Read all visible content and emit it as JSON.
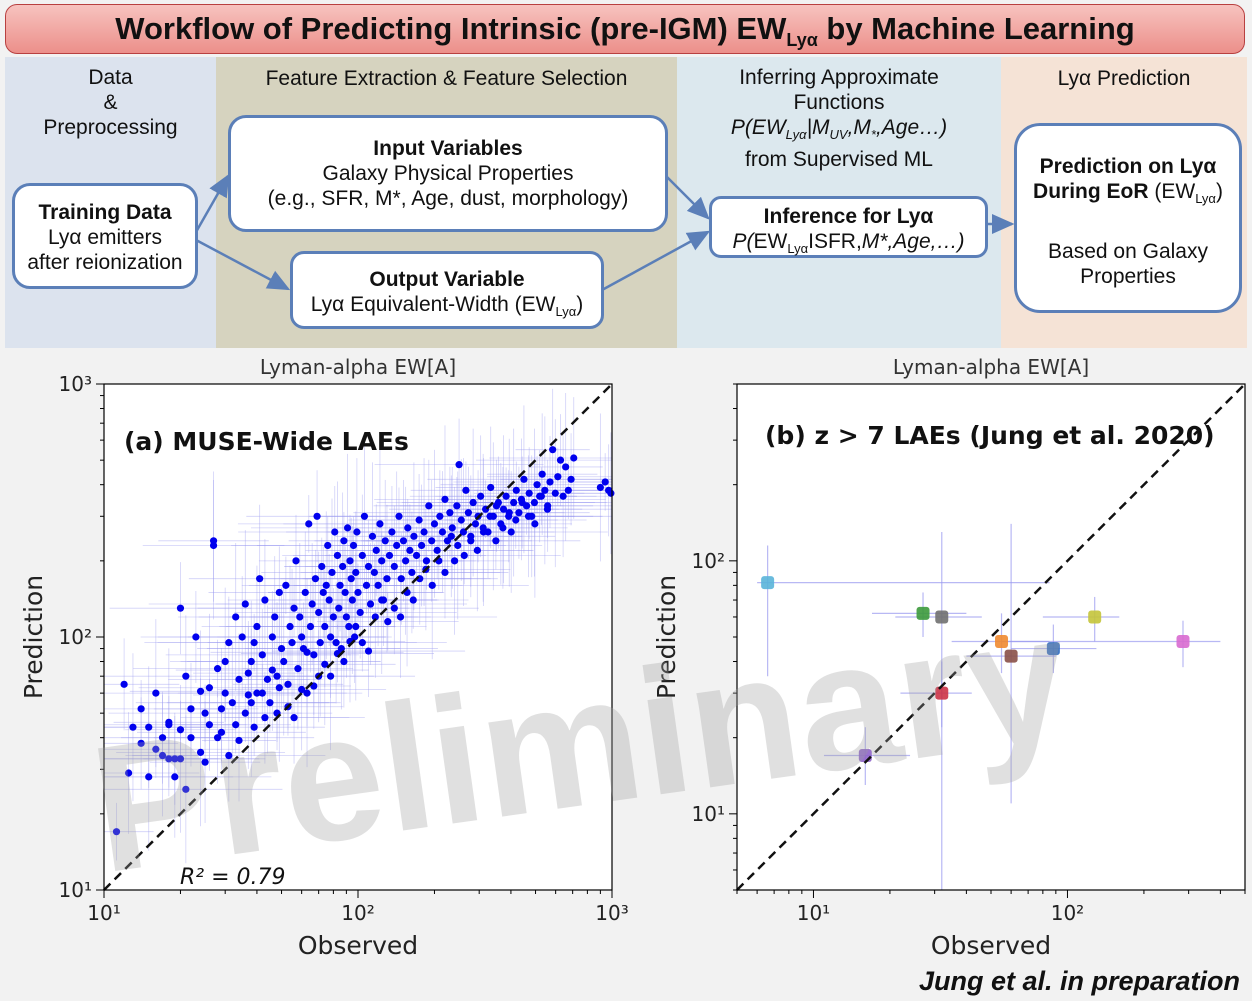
{
  "title": {
    "main": "Workflow of Predicting Intrinsic (pre-IGM) EW",
    "sub": "Lyα",
    "tail": " by Machine Learning"
  },
  "columns": [
    {
      "l1": "Data",
      "l2": "&",
      "l3": "Preprocessing"
    },
    {
      "l1": "Feature Extraction & Feature Selection"
    },
    {
      "l1": "Inferring Approximate",
      "l2": "Functions",
      "l3a": "P(EW",
      "l3s": "Lyα",
      "l3b": "|M",
      "l3s2": "UV",
      "l3c": ",M",
      "l3d": "*",
      "l3e": ",Age…)",
      "l4": "from Supervised ML"
    },
    {
      "l1": "Lyα Prediction"
    }
  ],
  "boxes": {
    "training": {
      "title": "Training Data",
      "l2": "Lyα emitters",
      "l3": "after reionization"
    },
    "input": {
      "title": "Input Variables",
      "l2": "Galaxy Physical Properties",
      "l3": "(e.g., SFR, M*, Age, dust, morphology)"
    },
    "output": {
      "title": "Output Variable",
      "l2a": "Lyα Equivalent-Width (EW",
      "l2s": "Lyα",
      "l2b": ")"
    },
    "inference": {
      "title": "Inference for Lyα",
      "l2a": "P(",
      "l2b": "EW",
      "l2s": "Lyα",
      "l2c": "ISFR,",
      "l2d": "M*,Age,…)"
    },
    "prediction": {
      "title1": "Prediction on Lyα",
      "title2a": "During EoR ",
      "title2b": "(EW",
      "title2s": "Lyα",
      "title2c": ")",
      "l3": "Based on Galaxy",
      "l4": "Properties"
    }
  },
  "watermark": "Preliminary",
  "credit": "Jung et al. in preparation",
  "chart_data": [
    {
      "type": "scatter",
      "title": "Lyman-alpha EW[A]",
      "annotation": "(a) MUSE-Wide LAEs",
      "r2_label": "R² = 0.79",
      "xlabel": "Observed",
      "ylabel": "Prediction",
      "xscale": "log",
      "yscale": "log",
      "xlim": [
        10,
        1000
      ],
      "ylim": [
        10,
        1000
      ],
      "xticks": [
        "10¹",
        "10²",
        "10³"
      ],
      "yticks": [
        "10¹",
        "10²",
        "10³"
      ],
      "color": "#0000ee",
      "errorbar_color": "#9a9af0",
      "points": [
        [
          11.2,
          17
        ],
        [
          12,
          65
        ],
        [
          12.5,
          29
        ],
        [
          13,
          44
        ],
        [
          14,
          52
        ],
        [
          14,
          38
        ],
        [
          15,
          44
        ],
        [
          16,
          60
        ],
        [
          16,
          36
        ],
        [
          17,
          40
        ],
        [
          17,
          34
        ],
        [
          18,
          46
        ],
        [
          18,
          45
        ],
        [
          19,
          33
        ],
        [
          19,
          28
        ],
        [
          20,
          33
        ],
        [
          20,
          43
        ],
        [
          20,
          130
        ],
        [
          21,
          70
        ],
        [
          21,
          25
        ],
        [
          22,
          40
        ],
        [
          23,
          100
        ],
        [
          24,
          61
        ],
        [
          24,
          35
        ],
        [
          25,
          50
        ],
        [
          26,
          45
        ],
        [
          27,
          240
        ],
        [
          27,
          230
        ],
        [
          28,
          75
        ],
        [
          28,
          40
        ],
        [
          29,
          52
        ],
        [
          30,
          80
        ],
        [
          30,
          60
        ],
        [
          31,
          95
        ],
        [
          32,
          55
        ],
        [
          33,
          120
        ],
        [
          33,
          45
        ],
        [
          34,
          68
        ],
        [
          35,
          100
        ],
        [
          36,
          135
        ],
        [
          36,
          50
        ],
        [
          37,
          72
        ],
        [
          38,
          80
        ],
        [
          38,
          55
        ],
        [
          39,
          95
        ],
        [
          40,
          60
        ],
        [
          40,
          110
        ],
        [
          41,
          170
        ],
        [
          42,
          60
        ],
        [
          42,
          85
        ],
        [
          43,
          140
        ],
        [
          44,
          68
        ],
        [
          45,
          55
        ],
        [
          46,
          100
        ],
        [
          47,
          120
        ],
        [
          48,
          70
        ],
        [
          48,
          50
        ],
        [
          49,
          150
        ],
        [
          50,
          90
        ],
        [
          51,
          80
        ],
        [
          52,
          160
        ],
        [
          53,
          65
        ],
        [
          54,
          110
        ],
        [
          55,
          95
        ],
        [
          56,
          130
        ],
        [
          57,
          200
        ],
        [
          58,
          75
        ],
        [
          59,
          120
        ],
        [
          60,
          100
        ],
        [
          61,
          90
        ],
        [
          62,
          150
        ],
        [
          63,
          60
        ],
        [
          64,
          280
        ],
        [
          65,
          110
        ],
        [
          66,
          135
        ],
        [
          67,
          85
        ],
        [
          68,
          170
        ],
        [
          69,
          300
        ],
        [
          70,
          125
        ],
        [
          71,
          95
        ],
        [
          72,
          190
        ],
        [
          73,
          150
        ],
        [
          74,
          110
        ],
        [
          75,
          160
        ],
        [
          76,
          230
        ],
        [
          77,
          140
        ],
        [
          78,
          100
        ],
        [
          79,
          180
        ],
        [
          80,
          120
        ],
        [
          81,
          260
        ],
        [
          82,
          95
        ],
        [
          83,
          210
        ],
        [
          84,
          130
        ],
        [
          85,
          160
        ],
        [
          86,
          90
        ],
        [
          87,
          190
        ],
        [
          88,
          240
        ],
        [
          89,
          150
        ],
        [
          90,
          120
        ],
        [
          91,
          270
        ],
        [
          92,
          110
        ],
        [
          93,
          200
        ],
        [
          94,
          170
        ],
        [
          95,
          140
        ],
        [
          96,
          230
        ],
        [
          97,
          100
        ],
        [
          98,
          180
        ],
        [
          99,
          260
        ],
        [
          100,
          150
        ],
        [
          102,
          125
        ],
        [
          104,
          210
        ],
        [
          106,
          300
        ],
        [
          108,
          160
        ],
        [
          110,
          190
        ],
        [
          112,
          135
        ],
        [
          114,
          250
        ],
        [
          116,
          180
        ],
        [
          118,
          220
        ],
        [
          120,
          160
        ],
        [
          122,
          280
        ],
        [
          124,
          200
        ],
        [
          126,
          140
        ],
        [
          128,
          240
        ],
        [
          130,
          170
        ],
        [
          133,
          210
        ],
        [
          136,
          260
        ],
        [
          139,
          190
        ],
        [
          142,
          230
        ],
        [
          145,
          300
        ],
        [
          148,
          170
        ],
        [
          151,
          240
        ],
        [
          154,
          200
        ],
        [
          157,
          270
        ],
        [
          160,
          220
        ],
        [
          163,
          180
        ],
        [
          166,
          250
        ],
        [
          170,
          210
        ],
        [
          174,
          290
        ],
        [
          178,
          230
        ],
        [
          182,
          260
        ],
        [
          186,
          200
        ],
        [
          190,
          330
        ],
        [
          195,
          240
        ],
        [
          200,
          280
        ],
        [
          205,
          220
        ],
        [
          210,
          300
        ],
        [
          215,
          260
        ],
        [
          220,
          350
        ],
        [
          225,
          240
        ],
        [
          230,
          310
        ],
        [
          235,
          270
        ],
        [
          240,
          200
        ],
        [
          245,
          330
        ],
        [
          250,
          480
        ],
        [
          255,
          290
        ],
        [
          260,
          260
        ],
        [
          266,
          380
        ],
        [
          272,
          310
        ],
        [
          278,
          250
        ],
        [
          284,
          340
        ],
        [
          290,
          280
        ],
        [
          297,
          300
        ],
        [
          304,
          360
        ],
        [
          311,
          270
        ],
        [
          318,
          320
        ],
        [
          325,
          260
        ],
        [
          333,
          390
        ],
        [
          341,
          300
        ],
        [
          349,
          240
        ],
        [
          357,
          340
        ],
        [
          365,
          280
        ],
        [
          374,
          320
        ],
        [
          383,
          360
        ],
        [
          392,
          300
        ],
        [
          401,
          260
        ],
        [
          410,
          340
        ],
        [
          420,
          380
        ],
        [
          430,
          310
        ],
        [
          440,
          350
        ],
        [
          450,
          420
        ],
        [
          461,
          330
        ],
        [
          472,
          370
        ],
        [
          483,
          300
        ],
        [
          495,
          340
        ],
        [
          507,
          400
        ],
        [
          519,
          360
        ],
        [
          531,
          440
        ],
        [
          544,
          380
        ],
        [
          557,
          320
        ],
        [
          570,
          410
        ],
        [
          584,
          550
        ],
        [
          598,
          370
        ],
        [
          612,
          430
        ],
        [
          627,
          500
        ],
        [
          642,
          360
        ],
        [
          657,
          470
        ],
        [
          673,
          380
        ],
        [
          690,
          420
        ],
        [
          707,
          510
        ],
        [
          900,
          390
        ],
        [
          940,
          410
        ],
        [
          970,
          380
        ],
        [
          990,
          370
        ],
        [
          15,
          28
        ],
        [
          18,
          33
        ],
        [
          22,
          52
        ],
        [
          25,
          32
        ],
        [
          26,
          63
        ],
        [
          29,
          42
        ],
        [
          31,
          34
        ],
        [
          34,
          39
        ],
        [
          37,
          59
        ],
        [
          39,
          44
        ],
        [
          43,
          48
        ],
        [
          46,
          74
        ],
        [
          49,
          63
        ],
        [
          53,
          53
        ],
        [
          56,
          48
        ],
        [
          60,
          62
        ],
        [
          63,
          87
        ],
        [
          67,
          64
        ],
        [
          70,
          70
        ],
        [
          74,
          78
        ],
        [
          78,
          70
        ],
        [
          83,
          86
        ],
        [
          88,
          80
        ],
        [
          93,
          96
        ],
        [
          98,
          110
        ],
        [
          104,
          95
        ],
        [
          110,
          88
        ],
        [
          117,
          120
        ],
        [
          124,
          140
        ],
        [
          131,
          115
        ],
        [
          139,
          130
        ],
        [
          147,
          120
        ],
        [
          156,
          150
        ],
        [
          165,
          140
        ],
        [
          175,
          170
        ],
        [
          185,
          185
        ],
        [
          196,
          160
        ],
        [
          208,
          200
        ],
        [
          220,
          180
        ],
        [
          233,
          250
        ],
        [
          247,
          230
        ],
        [
          262,
          210
        ],
        [
          278,
          240
        ],
        [
          295,
          220
        ],
        [
          312,
          260
        ],
        [
          331,
          300
        ],
        [
          351,
          330
        ],
        [
          372,
          270
        ],
        [
          394,
          310
        ],
        [
          418,
          290
        ],
        [
          443,
          340
        ],
        [
          469,
          300
        ],
        [
          497,
          280
        ],
        [
          527,
          360
        ],
        [
          558,
          330
        ]
      ]
    },
    {
      "type": "scatter",
      "title": "Lyman-alpha EW[A]",
      "annotation": "(b) z > 7 LAEs (Jung et al. 2020)",
      "xlabel": "Observed",
      "ylabel": "Prediction",
      "xscale": "log",
      "yscale": "log",
      "xlim": [
        5,
        500
      ],
      "ylim": [
        5,
        500
      ],
      "xticks": [
        "10¹",
        "10²"
      ],
      "yticks": [
        "10¹",
        "10²"
      ],
      "points": [
        {
          "x": 6.6,
          "y": 82,
          "color": "#5ab4d9",
          "xerr": [
            6.0,
            85
          ],
          "yerr": [
            35,
            115
          ]
        },
        {
          "x": 16,
          "y": 17,
          "color": "#8e63c9",
          "xerr": [
            11,
            24
          ],
          "yerr": [
            13,
            22
          ]
        },
        {
          "x": 27,
          "y": 62,
          "color": "#3c9a3c",
          "xerr": [
            17,
            40
          ],
          "yerr": [
            50,
            75
          ]
        },
        {
          "x": 32,
          "y": 60,
          "color": "#707070",
          "xerr": [
            21,
            46
          ],
          "yerr": [
            5,
            130
          ]
        },
        {
          "x": 32,
          "y": 30,
          "color": "#cc3347",
          "xerr": [
            22,
            42
          ],
          "yerr": [
            22,
            40
          ]
        },
        {
          "x": 55,
          "y": 48,
          "color": "#f08a30",
          "xerr": [
            35,
            85
          ],
          "yerr": [
            36,
            62
          ]
        },
        {
          "x": 60,
          "y": 42,
          "color": "#8a5048",
          "xerr": [
            40,
            90
          ],
          "yerr": [
            11,
            140
          ]
        },
        {
          "x": 88,
          "y": 45,
          "color": "#2f6bc0",
          "xerr": [
            60,
            130
          ],
          "yerr": [
            36,
            56
          ]
        },
        {
          "x": 128,
          "y": 60,
          "color": "#c4c43a",
          "xerr": [
            80,
            160
          ],
          "yerr": [
            48,
            72
          ]
        },
        {
          "x": 285,
          "y": 48,
          "color": "#d86ad0",
          "xerr": [
            55,
            400
          ],
          "yerr": [
            38,
            58
          ]
        }
      ]
    }
  ]
}
